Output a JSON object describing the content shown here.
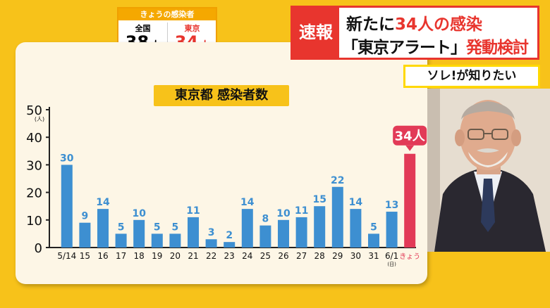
{
  "today_box": {
    "header": "きょうの感染者",
    "cells": [
      {
        "label": "全国",
        "value": "38",
        "unit": "人",
        "color": "#111111"
      },
      {
        "label": "東京",
        "value": "34",
        "unit": "人",
        "color": "#e8352e"
      }
    ]
  },
  "breaking": {
    "tag": "速報",
    "line1_pre": "新たに",
    "line1_hl": "34人の感染",
    "line2_pre": "「東京アラート」",
    "line2_hl": "発動検討"
  },
  "segment": "ソレ!が知りたい",
  "chart_data": {
    "type": "bar",
    "title": "東京都 感染者数",
    "ylabel": "(人)",
    "ylim": [
      0,
      50
    ],
    "yticks": [
      "0",
      "10",
      "20",
      "30",
      "40",
      "50"
    ],
    "grid": false,
    "categories": [
      "5/14",
      "15",
      "16",
      "17",
      "18",
      "19",
      "20",
      "21",
      "22",
      "23",
      "24",
      "25",
      "26",
      "27",
      "28",
      "29",
      "30",
      "31",
      "6/1",
      "きょう"
    ],
    "sublabel_6_1": "(日)",
    "values": [
      30,
      9,
      14,
      5,
      10,
      5,
      5,
      11,
      3,
      2,
      14,
      8,
      10,
      11,
      15,
      22,
      14,
      5,
      13,
      34
    ],
    "bar_color": "#3d8fd1",
    "highlight_color": "#e23a57",
    "highlight_callout": "34人"
  }
}
